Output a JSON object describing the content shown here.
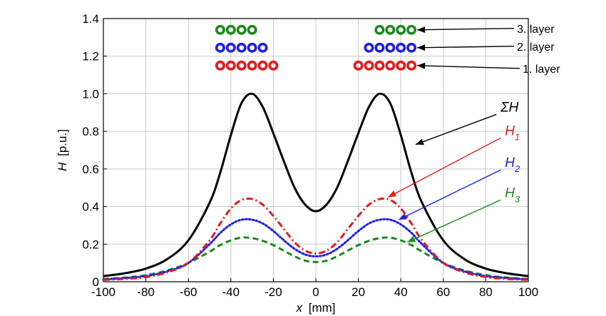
{
  "chart_data": {
    "type": "line",
    "xlabel_var": "x",
    "xlabel_unit": "[mm]",
    "ylabel_var": "H",
    "ylabel_unit": "[p.u.]",
    "xlim": [
      -100,
      100
    ],
    "ylim": [
      0,
      1.4
    ],
    "xticks": [
      -100,
      -80,
      -60,
      -40,
      -20,
      0,
      20,
      40,
      60,
      80,
      100
    ],
    "yticks": [
      0,
      0.2,
      0.4,
      0.6,
      0.8,
      1.0,
      1.2,
      1.4
    ],
    "ytick_labels": [
      "0",
      "0.2",
      "0.4",
      "0.6",
      "0.8",
      "1.0",
      "1.2",
      "1.4"
    ],
    "grid": true,
    "x": [
      -100,
      -90,
      -80,
      -70,
      -60,
      -50,
      -45,
      -40,
      -35,
      -30,
      -25,
      -20,
      -15,
      -10,
      -5,
      0,
      5,
      10,
      15,
      20,
      25,
      30,
      35,
      40,
      45,
      50,
      60,
      70,
      80,
      90,
      100
    ],
    "series": [
      {
        "id": "sum",
        "label_main": "ΣH",
        "label_sub": "",
        "color": "#000000",
        "style": "solid",
        "values": [
          0.03,
          0.045,
          0.07,
          0.12,
          0.22,
          0.42,
          0.58,
          0.78,
          0.95,
          1.0,
          0.93,
          0.79,
          0.64,
          0.5,
          0.41,
          0.375,
          0.41,
          0.5,
          0.64,
          0.79,
          0.93,
          1.0,
          0.95,
          0.78,
          0.58,
          0.42,
          0.22,
          0.12,
          0.07,
          0.045,
          0.03
        ]
      },
      {
        "id": "h1",
        "label_main": "H",
        "label_sub": "1",
        "color": "#e41a1c",
        "style": "dashdot",
        "values": [
          0.01,
          0.015,
          0.025,
          0.05,
          0.1,
          0.22,
          0.31,
          0.39,
          0.435,
          0.44,
          0.41,
          0.35,
          0.28,
          0.21,
          0.165,
          0.15,
          0.165,
          0.21,
          0.28,
          0.35,
          0.41,
          0.44,
          0.435,
          0.39,
          0.31,
          0.22,
          0.1,
          0.05,
          0.025,
          0.015,
          0.01
        ]
      },
      {
        "id": "h2",
        "label_main": "H",
        "label_sub": "2",
        "color": "#1f1fe6",
        "style": "dotted",
        "values": [
          0.012,
          0.02,
          0.03,
          0.055,
          0.1,
          0.2,
          0.26,
          0.305,
          0.33,
          0.33,
          0.31,
          0.27,
          0.22,
          0.175,
          0.145,
          0.135,
          0.145,
          0.175,
          0.22,
          0.27,
          0.31,
          0.33,
          0.33,
          0.305,
          0.26,
          0.2,
          0.1,
          0.055,
          0.03,
          0.02,
          0.012
        ]
      },
      {
        "id": "h3",
        "label_main": "H",
        "label_sub": "3",
        "color": "#1a8a1a",
        "style": "dashed",
        "values": [
          0.015,
          0.022,
          0.035,
          0.06,
          0.1,
          0.16,
          0.195,
          0.22,
          0.235,
          0.232,
          0.218,
          0.195,
          0.165,
          0.135,
          0.112,
          0.105,
          0.112,
          0.135,
          0.165,
          0.195,
          0.218,
          0.232,
          0.235,
          0.22,
          0.195,
          0.16,
          0.1,
          0.06,
          0.035,
          0.022,
          0.015
        ]
      }
    ],
    "layers": [
      {
        "label": "3. layer",
        "color": "#1a8a1a",
        "y": 1.34,
        "left_x": [
          -45,
          -40,
          -35,
          -30
        ],
        "right_x": [
          30,
          35,
          40,
          45
        ]
      },
      {
        "label": "2. layer",
        "color": "#1f1fe6",
        "y": 1.245,
        "left_x": [
          -45,
          -40,
          -35,
          -30,
          -25
        ],
        "right_x": [
          25,
          30,
          35,
          40,
          45
        ]
      },
      {
        "label": "1. layer",
        "color": "#e41a1c",
        "y": 1.15,
        "left_x": [
          -45,
          -40,
          -35,
          -30,
          -25,
          -20
        ],
        "right_x": [
          20,
          25,
          30,
          35,
          40,
          45
        ]
      }
    ]
  }
}
